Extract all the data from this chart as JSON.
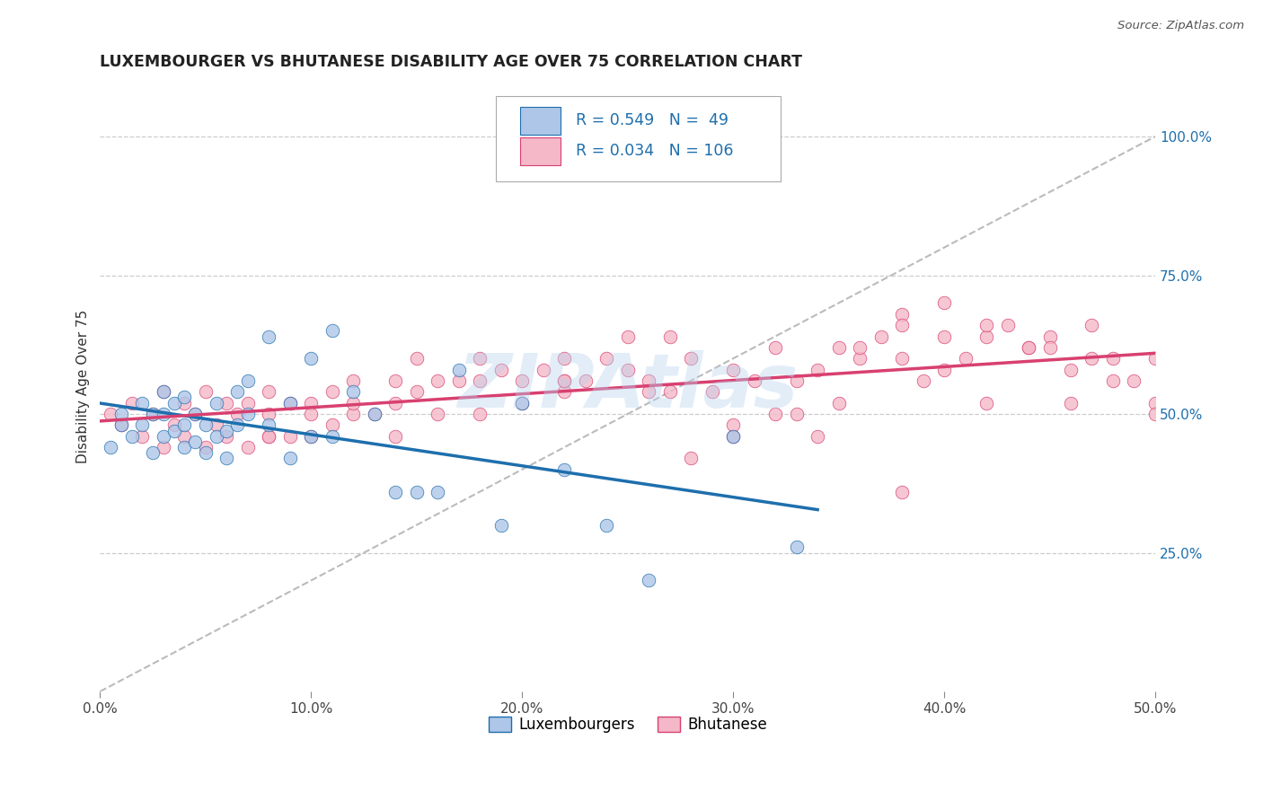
{
  "title": "LUXEMBOURGER VS BHUTANESE DISABILITY AGE OVER 75 CORRELATION CHART",
  "source_text": "Source: ZipAtlas.com",
  "ylabel": "Disability Age Over 75",
  "xlim": [
    0.0,
    0.5
  ],
  "ylim": [
    0.0,
    1.1
  ],
  "xtick_labels": [
    "0.0%",
    "10.0%",
    "20.0%",
    "30.0%",
    "40.0%",
    "50.0%"
  ],
  "xtick_values": [
    0.0,
    0.1,
    0.2,
    0.3,
    0.4,
    0.5
  ],
  "ytick_labels_right": [
    "25.0%",
    "50.0%",
    "75.0%",
    "100.0%"
  ],
  "ytick_values_right": [
    0.25,
    0.5,
    0.75,
    1.0
  ],
  "R_blue": 0.549,
  "N_blue": 49,
  "R_pink": 0.034,
  "N_pink": 106,
  "blue_color": "#aec6e8",
  "blue_line_color": "#1e6fad",
  "pink_color": "#f4b8c8",
  "pink_line_color": "#d84070",
  "legend_blue_label": "Luxembourgers",
  "legend_pink_label": "Bhutanese",
  "watermark": "ZIPAtlas",
  "background_color": "#ffffff",
  "grid_color": "#c8c8c8",
  "title_color": "#222222",
  "source_color": "#555555",
  "blue_scatter_x": [
    0.005,
    0.01,
    0.01,
    0.015,
    0.02,
    0.02,
    0.025,
    0.025,
    0.03,
    0.03,
    0.03,
    0.035,
    0.035,
    0.04,
    0.04,
    0.04,
    0.045,
    0.045,
    0.05,
    0.05,
    0.055,
    0.055,
    0.06,
    0.06,
    0.065,
    0.065,
    0.07,
    0.07,
    0.08,
    0.08,
    0.09,
    0.09,
    0.1,
    0.1,
    0.11,
    0.11,
    0.12,
    0.13,
    0.14,
    0.15,
    0.16,
    0.17,
    0.19,
    0.2,
    0.22,
    0.24,
    0.26,
    0.3,
    0.33
  ],
  "blue_scatter_y": [
    0.44,
    0.48,
    0.5,
    0.46,
    0.48,
    0.52,
    0.43,
    0.5,
    0.46,
    0.5,
    0.54,
    0.47,
    0.52,
    0.44,
    0.48,
    0.53,
    0.45,
    0.5,
    0.43,
    0.48,
    0.46,
    0.52,
    0.42,
    0.47,
    0.48,
    0.54,
    0.5,
    0.56,
    0.48,
    0.64,
    0.42,
    0.52,
    0.46,
    0.6,
    0.46,
    0.65,
    0.54,
    0.5,
    0.36,
    0.36,
    0.36,
    0.58,
    0.3,
    0.52,
    0.4,
    0.3,
    0.2,
    0.46,
    0.26
  ],
  "pink_scatter_x": [
    0.005,
    0.01,
    0.015,
    0.02,
    0.025,
    0.03,
    0.03,
    0.035,
    0.04,
    0.04,
    0.045,
    0.05,
    0.05,
    0.055,
    0.06,
    0.065,
    0.07,
    0.07,
    0.08,
    0.08,
    0.09,
    0.09,
    0.1,
    0.1,
    0.11,
    0.11,
    0.12,
    0.12,
    0.13,
    0.14,
    0.14,
    0.15,
    0.16,
    0.17,
    0.18,
    0.19,
    0.2,
    0.21,
    0.22,
    0.22,
    0.23,
    0.24,
    0.25,
    0.26,
    0.27,
    0.28,
    0.29,
    0.3,
    0.31,
    0.32,
    0.33,
    0.34,
    0.35,
    0.36,
    0.37,
    0.38,
    0.38,
    0.39,
    0.4,
    0.4,
    0.41,
    0.42,
    0.43,
    0.44,
    0.45,
    0.46,
    0.47,
    0.47,
    0.48,
    0.49,
    0.5,
    0.5,
    0.15,
    0.2,
    0.25,
    0.3,
    0.35,
    0.4,
    0.45,
    0.38,
    0.42,
    0.28,
    0.32,
    0.18,
    0.22,
    0.27,
    0.33,
    0.36,
    0.44,
    0.48,
    0.08,
    0.12,
    0.16,
    0.06,
    0.1,
    0.14,
    0.18,
    0.22,
    0.26,
    0.3,
    0.34,
    0.38,
    0.42,
    0.46,
    0.5,
    0.08
  ],
  "pink_scatter_y": [
    0.5,
    0.48,
    0.52,
    0.46,
    0.5,
    0.44,
    0.54,
    0.48,
    0.46,
    0.52,
    0.5,
    0.44,
    0.54,
    0.48,
    0.46,
    0.5,
    0.44,
    0.52,
    0.46,
    0.5,
    0.46,
    0.52,
    0.46,
    0.52,
    0.48,
    0.54,
    0.5,
    0.56,
    0.5,
    0.52,
    0.56,
    0.54,
    0.56,
    0.56,
    0.56,
    0.58,
    0.56,
    0.58,
    0.54,
    0.6,
    0.56,
    0.6,
    0.58,
    0.56,
    0.54,
    0.6,
    0.54,
    0.58,
    0.56,
    0.62,
    0.56,
    0.58,
    0.62,
    0.6,
    0.64,
    0.6,
    0.68,
    0.56,
    0.64,
    0.7,
    0.6,
    0.64,
    0.66,
    0.62,
    0.64,
    0.58,
    0.6,
    0.66,
    0.6,
    0.56,
    0.52,
    0.6,
    0.6,
    0.52,
    0.64,
    0.46,
    0.52,
    0.58,
    0.62,
    0.66,
    0.66,
    0.42,
    0.5,
    0.6,
    0.56,
    0.64,
    0.5,
    0.62,
    0.62,
    0.56,
    0.54,
    0.52,
    0.5,
    0.52,
    0.5,
    0.46,
    0.5,
    0.56,
    0.54,
    0.48,
    0.46,
    0.36,
    0.52,
    0.52,
    0.5,
    0.46
  ]
}
